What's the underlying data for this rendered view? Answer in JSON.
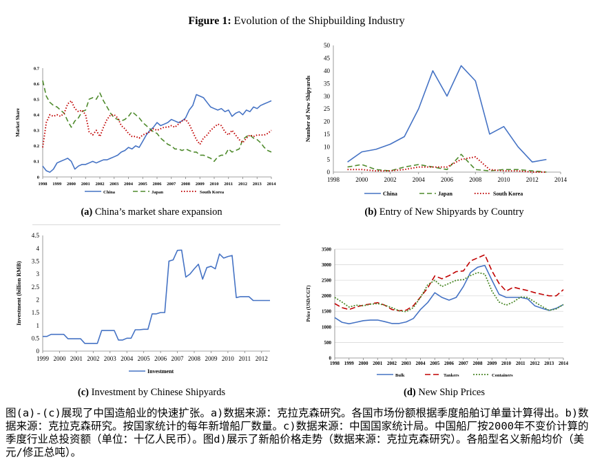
{
  "figure": {
    "label": "Figure 1:",
    "title": "Evolution of the Shipbuilding Industry"
  },
  "captions": {
    "a": {
      "label": "(a)",
      "text": "China’s market share expansion"
    },
    "b": {
      "label": "(b)",
      "text": "Entry of New Shipyards by Country"
    },
    "c": {
      "label": "(c)",
      "text": "Investment by Chinese Shipyards"
    },
    "d": {
      "label": "(d)",
      "text": "New Ship Prices"
    }
  },
  "footnote": "图(a)-(c)展现了中国造船业的快速扩张。a)数据来源：克拉克森研究。各国市场份额根据季度船舶订单量计算得出。b)数据来源：克拉克森研究。按国家统计的每年新增船厂数量。c)数据来源：中国国家统计局。中国船厂按2000年不变价计算的季度行业总投资额（单位：十亿人民币）。图d)展示了新船价格走势（数据来源：克拉克森研究）。各船型名义新船均价（美元/修正总吨）。",
  "chart_data": [
    {
      "id": "a",
      "type": "line",
      "ylabel": "Market Share",
      "xlabel": "",
      "ylim": [
        0,
        0.7
      ],
      "yticks": [
        "0",
        "0.1",
        "0.2",
        "0.3",
        "0.4",
        "0.5",
        "0.6",
        "0.7"
      ],
      "xlim": [
        1998,
        2014
      ],
      "xticks": [
        "1998",
        "1999",
        "2000",
        "2001",
        "2002",
        "2003",
        "2004",
        "2005",
        "2006",
        "2007",
        "2008",
        "2009",
        "2010",
        "2011",
        "2012",
        "2013",
        "2014"
      ],
      "legend": "bottom",
      "grid": false,
      "series": [
        {
          "name": "China",
          "color": "#4472c4",
          "dash": "solid",
          "width": 1.6,
          "x": [
            1998,
            1998.25,
            1998.5,
            1998.75,
            1999,
            1999.25,
            1999.5,
            1999.75,
            2000,
            2000.25,
            2000.5,
            2000.75,
            2001,
            2001.25,
            2001.5,
            2001.75,
            2002,
            2002.25,
            2002.5,
            2002.75,
            2003,
            2003.25,
            2003.5,
            2003.75,
            2004,
            2004.25,
            2004.5,
            2004.75,
            2005,
            2005.25,
            2005.5,
            2005.75,
            2006,
            2006.25,
            2006.5,
            2006.75,
            2007,
            2007.25,
            2007.5,
            2007.75,
            2008,
            2008.25,
            2008.5,
            2008.75,
            2009,
            2009.25,
            2009.5,
            2009.75,
            2010,
            2010.25,
            2010.5,
            2010.75,
            2011,
            2011.25,
            2011.5,
            2011.75,
            2012,
            2012.25,
            2012.5,
            2012.75,
            2013,
            2013.25,
            2013.5,
            2013.75,
            2014
          ],
          "y": [
            0.07,
            0.04,
            0.03,
            0.05,
            0.09,
            0.1,
            0.11,
            0.12,
            0.1,
            0.05,
            0.07,
            0.08,
            0.08,
            0.09,
            0.1,
            0.09,
            0.1,
            0.11,
            0.11,
            0.12,
            0.13,
            0.14,
            0.16,
            0.17,
            0.19,
            0.18,
            0.2,
            0.19,
            0.23,
            0.27,
            0.3,
            0.32,
            0.35,
            0.33,
            0.34,
            0.35,
            0.37,
            0.36,
            0.35,
            0.36,
            0.38,
            0.43,
            0.46,
            0.53,
            0.52,
            0.51,
            0.48,
            0.45,
            0.44,
            0.43,
            0.44,
            0.42,
            0.43,
            0.39,
            0.41,
            0.42,
            0.4,
            0.43,
            0.42,
            0.45,
            0.44,
            0.46,
            0.47,
            0.48,
            0.49
          ]
        },
        {
          "name": "Japan",
          "color": "#4e8a2c",
          "dash": "7,4",
          "width": 1.6,
          "x": [
            1998,
            1998.25,
            1998.5,
            1998.75,
            1999,
            1999.25,
            1999.5,
            1999.75,
            2000,
            2000.25,
            2000.5,
            2000.75,
            2001,
            2001.25,
            2001.5,
            2001.75,
            2002,
            2002.25,
            2002.5,
            2002.75,
            2003,
            2003.25,
            2003.5,
            2003.75,
            2004,
            2004.25,
            2004.5,
            2004.75,
            2005,
            2005.25,
            2005.5,
            2005.75,
            2006,
            2006.25,
            2006.5,
            2006.75,
            2007,
            2007.25,
            2007.5,
            2007.75,
            2008,
            2008.25,
            2008.5,
            2008.75,
            2009,
            2009.25,
            2009.5,
            2009.75,
            2010,
            2010.25,
            2010.5,
            2010.75,
            2011,
            2011.25,
            2011.5,
            2011.75,
            2012,
            2012.25,
            2012.5,
            2012.75,
            2013,
            2013.25,
            2013.5,
            2013.75,
            2014
          ],
          "y": [
            0.62,
            0.52,
            0.48,
            0.46,
            0.45,
            0.43,
            0.41,
            0.36,
            0.32,
            0.36,
            0.38,
            0.42,
            0.43,
            0.5,
            0.51,
            0.5,
            0.54,
            0.49,
            0.45,
            0.41,
            0.38,
            0.37,
            0.36,
            0.37,
            0.39,
            0.42,
            0.4,
            0.38,
            0.35,
            0.33,
            0.31,
            0.29,
            0.28,
            0.25,
            0.23,
            0.21,
            0.2,
            0.18,
            0.18,
            0.17,
            0.18,
            0.17,
            0.16,
            0.16,
            0.14,
            0.14,
            0.13,
            0.12,
            0.1,
            0.13,
            0.14,
            0.14,
            0.18,
            0.16,
            0.17,
            0.18,
            0.24,
            0.26,
            0.27,
            0.25,
            0.24,
            0.22,
            0.19,
            0.17,
            0.16
          ]
        },
        {
          "name": "South Korea",
          "color": "#c00000",
          "dash": "1.5,2.5",
          "width": 2,
          "x": [
            1998,
            1998.25,
            1998.5,
            1998.75,
            1999,
            1999.25,
            1999.5,
            1999.75,
            2000,
            2000.25,
            2000.5,
            2000.75,
            2001,
            2001.25,
            2001.5,
            2001.75,
            2002,
            2002.25,
            2002.5,
            2002.75,
            2003,
            2003.25,
            2003.5,
            2003.75,
            2004,
            2004.25,
            2004.5,
            2004.75,
            2005,
            2005.25,
            2005.5,
            2005.75,
            2006,
            2006.25,
            2006.5,
            2006.75,
            2007,
            2007.25,
            2007.5,
            2007.75,
            2008,
            2008.25,
            2008.5,
            2008.75,
            2009,
            2009.25,
            2009.5,
            2009.75,
            2010,
            2010.25,
            2010.5,
            2010.75,
            2011,
            2011.25,
            2011.5,
            2011.75,
            2012,
            2012.25,
            2012.5,
            2012.75,
            2013,
            2013.25,
            2013.5,
            2013.75,
            2014
          ],
          "y": [
            0.19,
            0.35,
            0.4,
            0.39,
            0.4,
            0.39,
            0.41,
            0.47,
            0.49,
            0.44,
            0.42,
            0.43,
            0.4,
            0.29,
            0.27,
            0.3,
            0.26,
            0.32,
            0.37,
            0.4,
            0.4,
            0.38,
            0.33,
            0.31,
            0.28,
            0.26,
            0.26,
            0.25,
            0.27,
            0.28,
            0.29,
            0.31,
            0.3,
            0.31,
            0.32,
            0.32,
            0.33,
            0.32,
            0.34,
            0.36,
            0.37,
            0.34,
            0.29,
            0.24,
            0.21,
            0.25,
            0.27,
            0.3,
            0.32,
            0.34,
            0.33,
            0.29,
            0.27,
            0.3,
            0.27,
            0.24,
            0.22,
            0.25,
            0.27,
            0.26,
            0.27,
            0.27,
            0.27,
            0.28,
            0.3
          ]
        }
      ]
    },
    {
      "id": "b",
      "type": "line",
      "ylabel": "Number of New Shipyards",
      "xlabel": "",
      "ylim": [
        0,
        50
      ],
      "yticks": [
        "0",
        "5",
        "10",
        "15",
        "20",
        "25",
        "30",
        "35",
        "40",
        "45",
        "50"
      ],
      "xlim": [
        1998,
        2014
      ],
      "xticks": [
        "1998",
        "2000",
        "2002",
        "2004",
        "2006",
        "2008",
        "2010",
        "2012",
        "2014"
      ],
      "legend": "bottom",
      "grid": false,
      "series": [
        {
          "name": "China",
          "color": "#4472c4",
          "dash": "solid",
          "width": 1.6,
          "x": [
            1999,
            2000,
            2001,
            2002,
            2003,
            2004,
            2005,
            2006,
            2007,
            2008,
            2009,
            2010,
            2011,
            2012,
            2013
          ],
          "y": [
            4,
            8,
            9,
            11,
            14,
            25,
            40,
            30,
            42,
            36,
            15,
            18,
            10,
            4,
            5
          ]
        },
        {
          "name": "Japan",
          "color": "#4e8a2c",
          "dash": "7,4",
          "width": 1.6,
          "x": [
            1999,
            2000,
            2001,
            2002,
            2003,
            2004,
            2005,
            2006,
            2007,
            2008,
            2009,
            2010,
            2011,
            2012,
            2013
          ],
          "y": [
            2,
            3,
            1,
            0.5,
            2,
            3,
            2,
            1,
            7,
            1,
            0.5,
            1,
            1,
            0.5,
            0
          ]
        },
        {
          "name": "South Korea",
          "color": "#c00000",
          "dash": "1.5,2.5",
          "width": 2,
          "x": [
            1999,
            2000,
            2001,
            2002,
            2003,
            2004,
            2005,
            2006,
            2007,
            2008,
            2009,
            2010,
            2011,
            2012,
            2013
          ],
          "y": [
            1,
            1,
            0.5,
            0.5,
            1,
            2,
            2,
            2,
            5,
            6,
            1,
            0.5,
            0.5,
            0,
            0
          ]
        }
      ]
    },
    {
      "id": "c",
      "type": "line",
      "ylabel": "Investment (billion RMB)",
      "xlabel": "",
      "ylim": [
        0,
        4.5
      ],
      "yticks": [
        "0",
        "0.5",
        "1",
        "1.5",
        "2",
        "2.5",
        "3",
        "3.5",
        "4",
        "4.5"
      ],
      "xlim": [
        1999,
        2012.5
      ],
      "xticks": [
        "1999",
        "2000",
        "2001",
        "2002",
        "2003",
        "2004",
        "2005",
        "2006",
        "2007",
        "2008",
        "2009",
        "2010",
        "2011",
        "2012"
      ],
      "legend": "bottom",
      "grid": false,
      "series": [
        {
          "name": "Investment",
          "color": "#4472c4",
          "dash": "solid",
          "width": 1.6,
          "x": [
            1999,
            1999.25,
            1999.5,
            1999.75,
            2000,
            2000.25,
            2000.5,
            2000.75,
            2001,
            2001.25,
            2001.5,
            2001.75,
            2002,
            2002.25,
            2002.5,
            2002.75,
            2003,
            2003.25,
            2003.5,
            2003.75,
            2004,
            2004.25,
            2004.5,
            2004.75,
            2005,
            2005.25,
            2005.5,
            2005.75,
            2006,
            2006.25,
            2006.5,
            2006.75,
            2007,
            2007.25,
            2007.5,
            2007.75,
            2008,
            2008.25,
            2008.5,
            2008.75,
            2009,
            2009.25,
            2009.5,
            2009.75,
            2010,
            2010.25,
            2010.5,
            2010.75,
            2011,
            2011.25,
            2011.5,
            2011.75,
            2012,
            2012.25,
            2012.5
          ],
          "y": [
            0.57,
            0.57,
            0.65,
            0.65,
            0.65,
            0.65,
            0.48,
            0.48,
            0.48,
            0.48,
            0.3,
            0.3,
            0.3,
            0.3,
            0.8,
            0.8,
            0.8,
            0.8,
            0.43,
            0.43,
            0.5,
            0.5,
            0.83,
            0.83,
            0.85,
            0.85,
            1.45,
            1.45,
            1.5,
            1.5,
            3.5,
            3.55,
            3.92,
            3.93,
            2.88,
            3.0,
            3.2,
            3.38,
            2.8,
            3.25,
            3.3,
            3.2,
            3.78,
            3.62,
            3.68,
            3.72,
            2.08,
            2.12,
            2.12,
            2.12,
            1.97,
            1.97,
            1.97,
            1.97,
            1.97
          ]
        }
      ]
    },
    {
      "id": "d",
      "type": "line",
      "ylabel": "Price (USD/CGT)",
      "xlabel": "",
      "ylim": [
        0,
        3500
      ],
      "yticks": [
        "0",
        "500",
        "1000",
        "1500",
        "2000",
        "2500",
        "3000",
        "3500"
      ],
      "xlim": [
        1998,
        2014
      ],
      "xticks": [
        "1998",
        "1999",
        "2000",
        "2001",
        "2002",
        "2003",
        "2004",
        "2005",
        "2006",
        "2007",
        "2008",
        "2009",
        "2010",
        "2011",
        "2012",
        "2013",
        "2014"
      ],
      "legend": "bottom",
      "grid": true,
      "series": [
        {
          "name": "Bulk",
          "color": "#4472c4",
          "dash": "solid",
          "width": 1.6,
          "x": [
            1998,
            1998.5,
            1999,
            1999.5,
            2000,
            2000.5,
            2001,
            2001.5,
            2002,
            2002.5,
            2003,
            2003.5,
            2004,
            2004.5,
            2005,
            2005.5,
            2006,
            2006.5,
            2007,
            2007.5,
            2008,
            2008.5,
            2009,
            2009.5,
            2010,
            2010.5,
            2011,
            2011.5,
            2012,
            2012.5,
            2013,
            2013.5,
            2014
          ],
          "y": [
            1300,
            1150,
            1100,
            1150,
            1200,
            1220,
            1220,
            1170,
            1110,
            1110,
            1160,
            1270,
            1560,
            1780,
            2100,
            1950,
            1860,
            1950,
            2300,
            2750,
            2920,
            2980,
            2500,
            2050,
            1950,
            1950,
            1950,
            1900,
            1680,
            1600,
            1530,
            1600,
            1720
          ]
        },
        {
          "name": "Tankers",
          "color": "#c00000",
          "dash": "8,4",
          "width": 1.6,
          "x": [
            1998,
            1998.5,
            1999,
            1999.5,
            2000,
            2000.5,
            2001,
            2001.5,
            2002,
            2002.5,
            2003,
            2003.5,
            2004,
            2004.5,
            2005,
            2005.5,
            2006,
            2006.5,
            2007,
            2007.5,
            2008,
            2008.5,
            2009,
            2009.5,
            2010,
            2010.5,
            2011,
            2011.5,
            2012,
            2012.5,
            2013,
            2013.5,
            2014
          ],
          "y": [
            1750,
            1620,
            1560,
            1640,
            1700,
            1740,
            1780,
            1700,
            1560,
            1520,
            1540,
            1680,
            1960,
            2250,
            2640,
            2550,
            2650,
            2780,
            2800,
            3120,
            3220,
            3320,
            2800,
            2400,
            2150,
            2280,
            2220,
            2170,
            2100,
            2050,
            2000,
            2000,
            2200
          ]
        },
        {
          "name": "Containers",
          "color": "#4e8a2c",
          "dash": "2,2",
          "width": 1.8,
          "x": [
            1998,
            1998.5,
            1999,
            1999.5,
            2000,
            2000.5,
            2001,
            2001.5,
            2002,
            2002.5,
            2003,
            2003.5,
            2004,
            2004.5,
            2005,
            2005.5,
            2006,
            2006.5,
            2007,
            2007.5,
            2008,
            2008.5,
            2009,
            2009.5,
            2010,
            2010.5,
            2011,
            2011.5,
            2012,
            2012.5,
            2013,
            2013.5,
            2014
          ],
          "y": [
            1950,
            1800,
            1640,
            1700,
            1680,
            1730,
            1750,
            1700,
            1620,
            1520,
            1490,
            1620,
            1950,
            2350,
            2500,
            2300,
            2400,
            2500,
            2520,
            2650,
            2750,
            2700,
            2150,
            1800,
            1700,
            1800,
            1960,
            1950,
            1800,
            1660,
            1530,
            1580,
            1720
          ]
        }
      ]
    }
  ]
}
